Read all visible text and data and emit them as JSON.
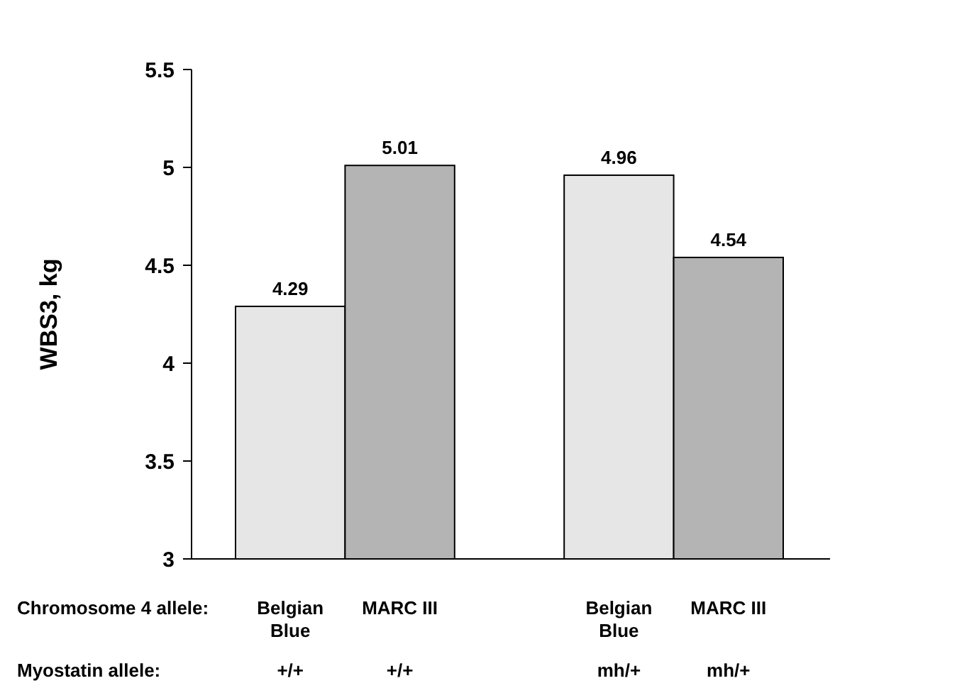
{
  "chart_data": {
    "type": "bar",
    "ylabel": "WBS3, kg",
    "categories": [
      "Belgian\nBlue",
      "MARC III",
      null,
      "Belgian\nBlue",
      "MARC  III"
    ],
    "values": [
      4.29,
      5.01,
      null,
      4.96,
      4.54
    ],
    "colors": [
      "#e6e6e6",
      "#b4b4b4",
      null,
      "#e6e6e6",
      "#b4b4b4"
    ],
    "data_labels": true,
    "ylim": [
      3,
      5.5
    ],
    "yticks": [
      3,
      3.5,
      4,
      4.5,
      5,
      5.5
    ],
    "annotations": [
      "Chromosome 4 allele:",
      "Myostatin allele:",
      "+/+",
      "+/+",
      "mh/+",
      "mh/+"
    ]
  }
}
